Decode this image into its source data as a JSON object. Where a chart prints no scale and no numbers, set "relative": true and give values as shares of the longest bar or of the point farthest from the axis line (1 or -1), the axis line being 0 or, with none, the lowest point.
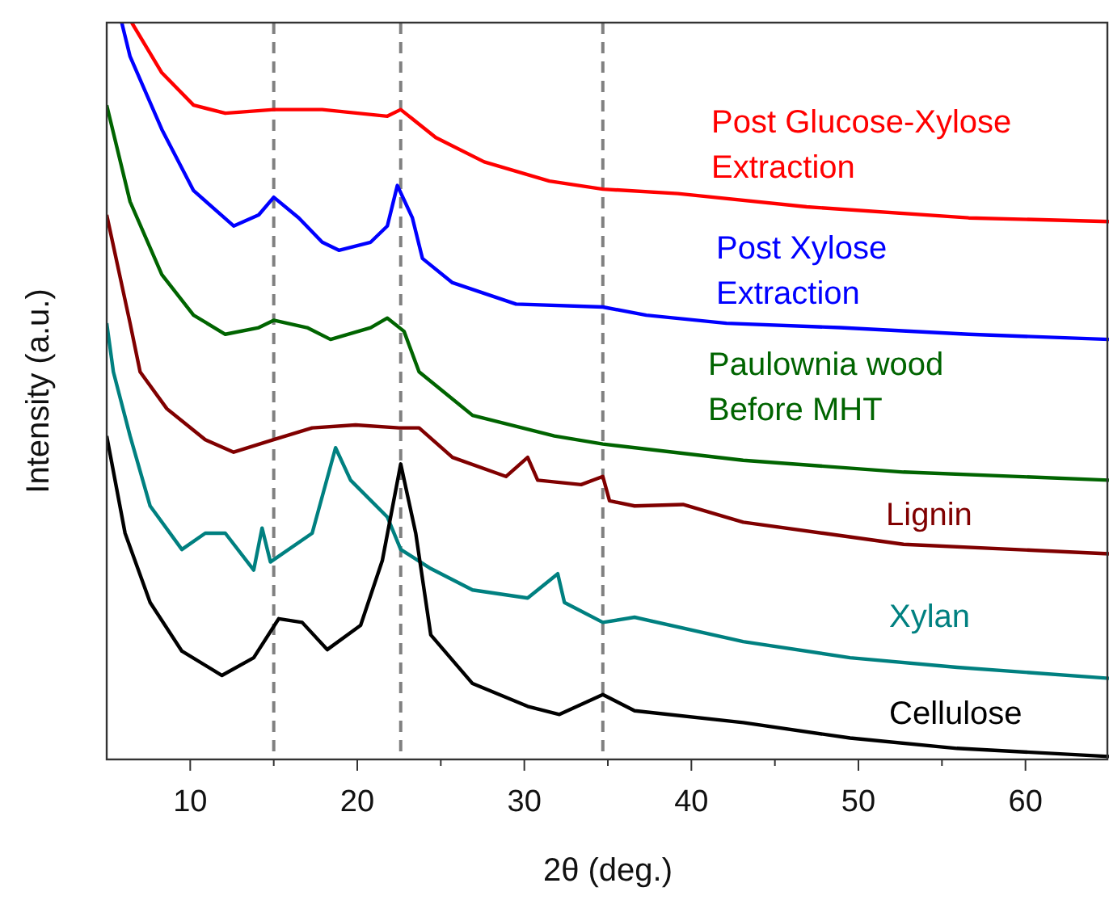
{
  "chart_data": {
    "type": "line",
    "xlabel": "2θ (deg.)",
    "ylabel": "Intensity (a.u.)",
    "relative": true,
    "xlim": [
      5,
      65
    ],
    "xticks": [
      10,
      20,
      30,
      40,
      50,
      60,
      {
        "value": 15,
        "label": null
      },
      {
        "value": 25,
        "label": null
      },
      {
        "value": 35,
        "label": null
      },
      {
        "value": 45,
        "label": null
      },
      {
        "value": 55,
        "label": null
      }
    ],
    "grid": false,
    "line_style": "solid",
    "marker": "none",
    "ref_lines": [
      {
        "axis": "x",
        "value": 15,
        "color": "#808080",
        "line_style": "dashed"
      },
      {
        "axis": "x",
        "value": 22.6,
        "color": "#808080",
        "line_style": "dashed"
      },
      {
        "axis": "x",
        "value": 34.7,
        "color": "#808080",
        "line_style": "dashed"
      }
    ],
    "series": [
      {
        "name": "Post Glucose-Xylose Extraction",
        "color": "#ff0000",
        "x": [
          6.5,
          8.3,
          10.2,
          12.1,
          15,
          17.9,
          21.8,
          22.6,
          24.7,
          27.6,
          31.5,
          34.7,
          39.2,
          46.9,
          56.6,
          65
        ],
        "values": [
          1.0,
          0.932,
          0.888,
          0.877,
          0.882,
          0.882,
          0.873,
          0.882,
          0.844,
          0.811,
          0.785,
          0.774,
          0.768,
          0.75,
          0.735,
          0.73
        ]
      },
      {
        "name": "Post Xylose Extraction",
        "color": "#0000ff",
        "x": [
          5.9,
          6.4,
          8.3,
          10.2,
          12.6,
          14.1,
          15.0,
          16.5,
          17.9,
          18.9,
          20.8,
          21.8,
          22.4,
          23.3,
          23.9,
          25.7,
          29.5,
          34.7,
          37.3,
          42.1,
          48.9,
          56.6,
          65
        ],
        "values": [
          1.0,
          0.954,
          0.855,
          0.772,
          0.724,
          0.739,
          0.763,
          0.735,
          0.702,
          0.691,
          0.702,
          0.724,
          0.779,
          0.735,
          0.68,
          0.647,
          0.618,
          0.614,
          0.603,
          0.592,
          0.586,
          0.577,
          0.57
        ]
      },
      {
        "name": "Paulownia wood Before MHT",
        "color": "#006400",
        "x": [
          5,
          6.4,
          8.3,
          10.2,
          12.1,
          14.1,
          15,
          17,
          18.4,
          20.8,
          21.8,
          22.8,
          23.7,
          26.9,
          31.8,
          34.7,
          43.1,
          52.7,
          65
        ],
        "values": [
          0.888,
          0.757,
          0.658,
          0.603,
          0.577,
          0.586,
          0.596,
          0.586,
          0.57,
          0.586,
          0.599,
          0.581,
          0.526,
          0.467,
          0.439,
          0.428,
          0.406,
          0.39,
          0.379
        ]
      },
      {
        "name": "Lignin",
        "color": "#800000",
        "x": [
          5,
          6.4,
          7.0,
          8.6,
          10.9,
          12.6,
          15,
          17.3,
          19.9,
          22.5,
          23.7,
          25.7,
          28.9,
          30.2,
          30.8,
          33.4,
          34.7,
          35.1,
          36.6,
          39.5,
          43.1,
          47.9,
          52.7,
          65
        ],
        "values": [
          0.739,
          0.592,
          0.526,
          0.476,
          0.434,
          0.417,
          0.434,
          0.45,
          0.454,
          0.45,
          0.45,
          0.41,
          0.384,
          0.41,
          0.379,
          0.373,
          0.384,
          0.351,
          0.344,
          0.346,
          0.322,
          0.307,
          0.292,
          0.279
        ]
      },
      {
        "name": "Xylan",
        "color": "#008080",
        "x": [
          5,
          5.4,
          6.4,
          7.6,
          9.5,
          10.9,
          12.1,
          13.8,
          14.3,
          14.8,
          17.3,
          18.7,
          19.6,
          21.8,
          22.6,
          24.4,
          26.9,
          30.2,
          32.0,
          32.4,
          34.7,
          36.6,
          43.1,
          49.5,
          55.9,
          65
        ],
        "values": [
          0.592,
          0.526,
          0.439,
          0.344,
          0.285,
          0.307,
          0.307,
          0.257,
          0.314,
          0.268,
          0.307,
          0.423,
          0.379,
          0.329,
          0.285,
          0.259,
          0.23,
          0.219,
          0.252,
          0.213,
          0.186,
          0.193,
          0.16,
          0.138,
          0.125,
          0.11
        ]
      },
      {
        "name": "Cellulose",
        "color": "#000000",
        "x": [
          5,
          6.1,
          7.6,
          9.5,
          11.9,
          13.8,
          15.3,
          16.7,
          18.2,
          20.2,
          21.5,
          22.6,
          23.5,
          24.4,
          26.9,
          30.2,
          32.1,
          34.7,
          36.6,
          43.1,
          49.5,
          55.9,
          65
        ],
        "values": [
          0.439,
          0.307,
          0.213,
          0.147,
          0.114,
          0.138,
          0.191,
          0.186,
          0.149,
          0.182,
          0.27,
          0.401,
          0.307,
          0.169,
          0.103,
          0.072,
          0.061,
          0.088,
          0.066,
          0.05,
          0.029,
          0.015,
          0.004
        ]
      }
    ]
  }
}
